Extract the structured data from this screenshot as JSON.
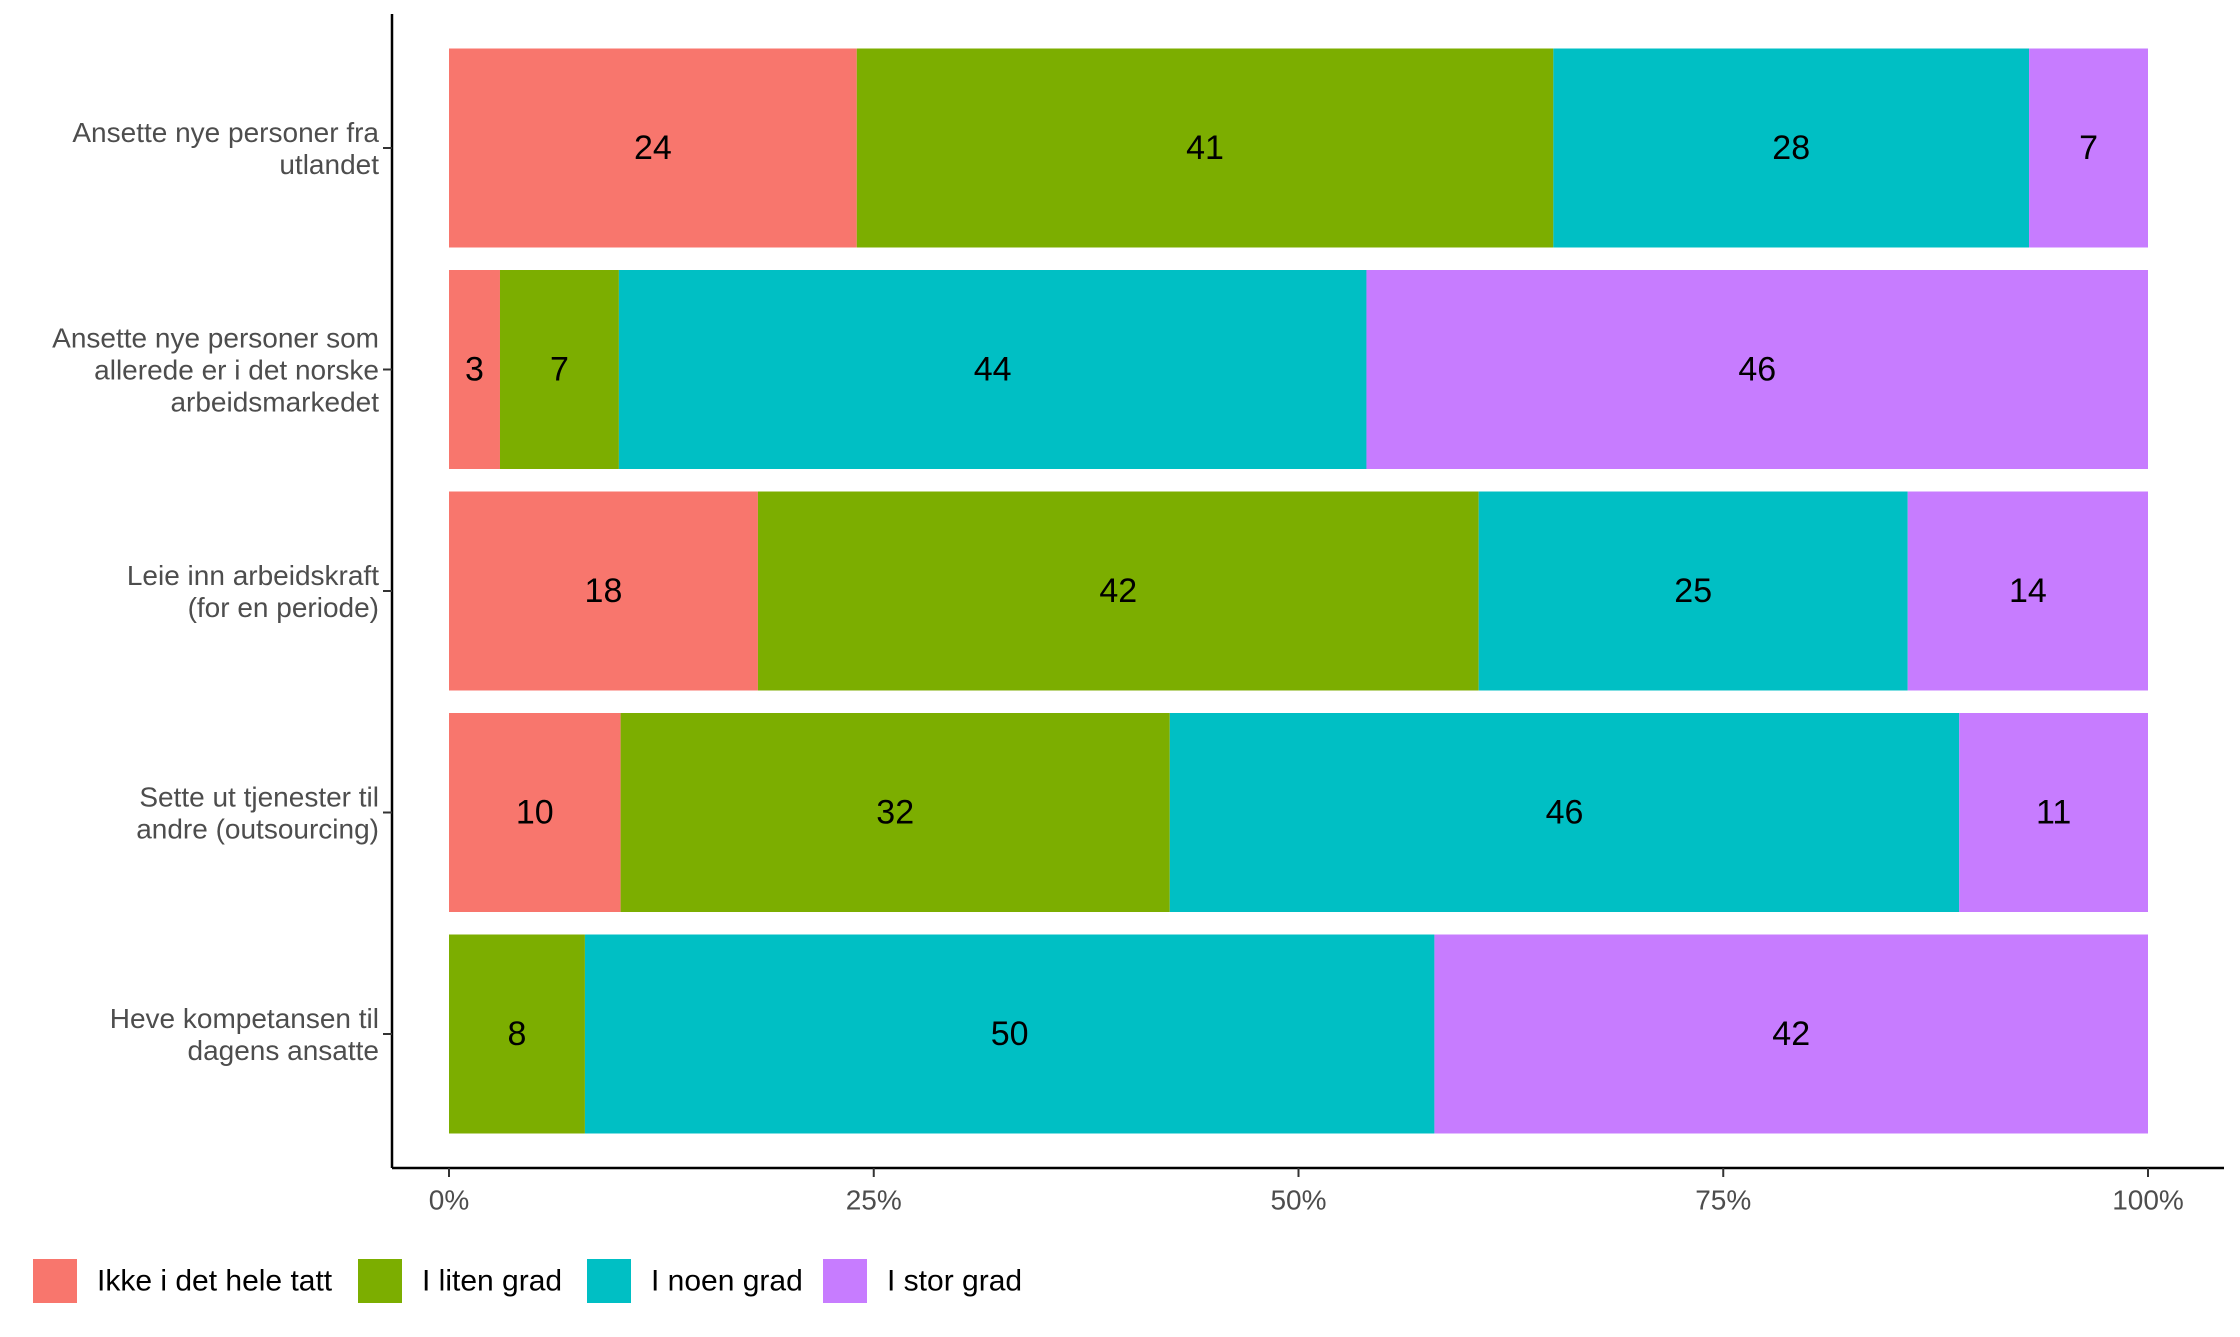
{
  "chart_data": {
    "type": "bar",
    "orientation": "horizontal",
    "stacked": "percent",
    "categories": [
      [
        "Ansette nye personer fra",
        "utlandet"
      ],
      [
        "Ansette nye personer som",
        "allerede er i det norske",
        "arbeidsmarkedet"
      ],
      [
        "Leie inn arbeidskraft",
        "(for en periode)"
      ],
      [
        "Sette ut tjenester til",
        "andre (outsourcing)"
      ],
      [
        "Heve kompetansen til",
        "dagens ansatte"
      ]
    ],
    "series": [
      {
        "name": "Ikke i det hele tatt",
        "color": "#F8766D",
        "values": [
          24,
          3,
          18,
          10,
          0
        ]
      },
      {
        "name": "I liten grad",
        "color": "#7CAE00",
        "values": [
          41,
          7,
          42,
          32,
          8
        ]
      },
      {
        "name": "I noen grad",
        "color": "#00BFC4",
        "values": [
          28,
          44,
          25,
          46,
          50
        ]
      },
      {
        "name": "I stor grad",
        "color": "#C77CFF",
        "values": [
          7,
          46,
          14,
          11,
          42
        ]
      }
    ],
    "x_ticks": [
      "0%",
      "25%",
      "50%",
      "75%",
      "100%"
    ],
    "xlim": [
      0,
      100
    ],
    "title": "",
    "xlabel": "",
    "ylabel": "",
    "grid": false,
    "legend_position": "bottom-left"
  }
}
